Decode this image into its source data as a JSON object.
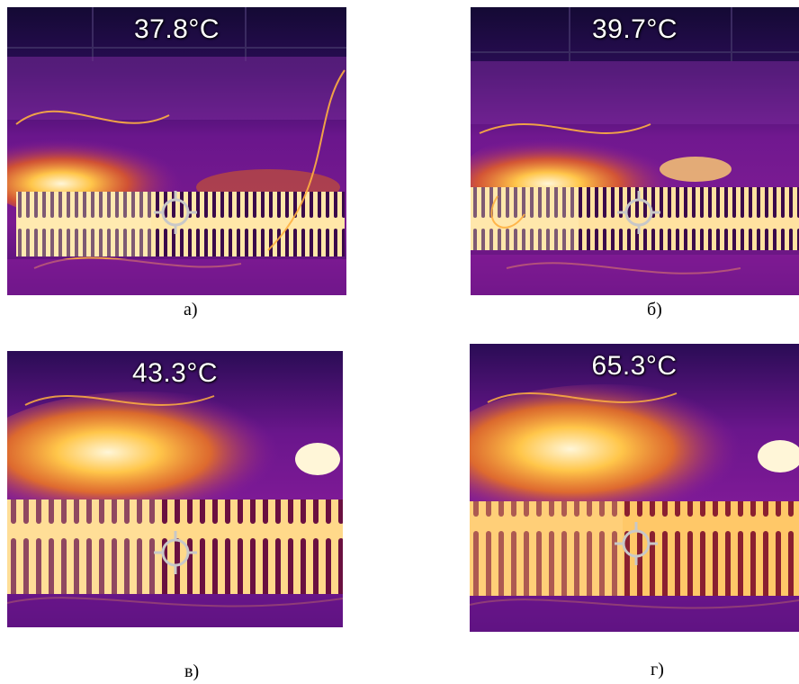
{
  "panels": [
    {
      "id": "a",
      "temperature": "37.8°C",
      "caption": "а)"
    },
    {
      "id": "b",
      "temperature": "39.7°C",
      "caption": "б)"
    },
    {
      "id": "v",
      "temperature": "43.3°C",
      "caption": "в)"
    },
    {
      "id": "g",
      "temperature": "65.3°C",
      "caption": "г)"
    }
  ],
  "palette": {
    "cold": "#1a0a3a",
    "cool": "#3d0c6e",
    "warm_purple": "#8a1c9c",
    "hot": "#f58a1c",
    "hotter": "#ffc64a",
    "white_hot": "#fff6d8",
    "crosshair": "#c8c8c8"
  },
  "icons": [
    "crosshair-icon"
  ]
}
